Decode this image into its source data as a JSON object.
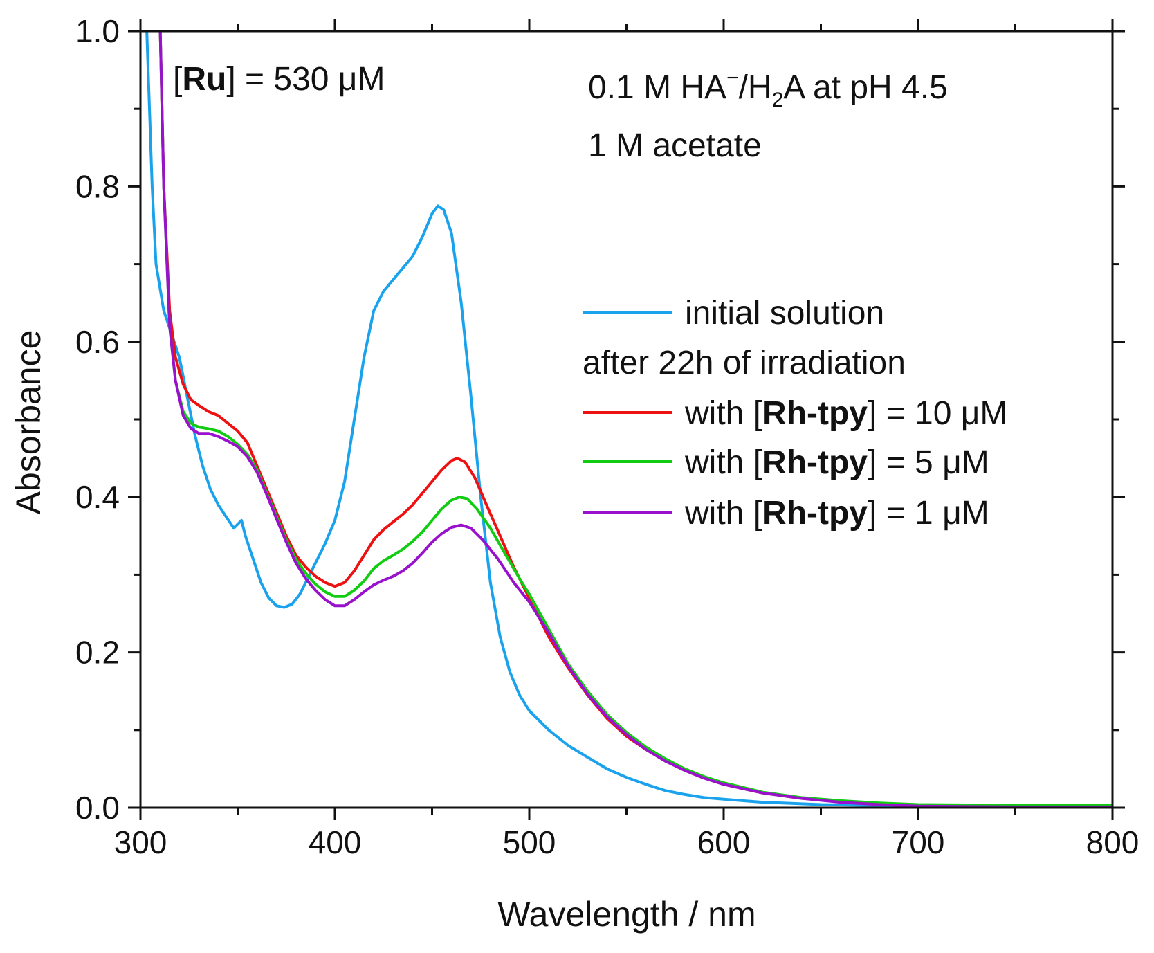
{
  "chart_data": {
    "type": "line",
    "xlabel": "Wavelength / nm",
    "ylabel": "Absorbance",
    "xlim": [
      300,
      800
    ],
    "ylim": [
      0.0,
      1.0
    ],
    "x_ticks": [
      "300",
      "400",
      "500",
      "600",
      "700",
      "800"
    ],
    "y_ticks": [
      "0.0",
      "0.2",
      "0.4",
      "0.6",
      "0.8",
      "1.0"
    ],
    "annotations": {
      "ru": {
        "open": "[",
        "bold": "Ru",
        "close": "] = 530 μM"
      },
      "line1": {
        "a": "0.1 M HA",
        "sup": "−",
        "b": "/H",
        "sub": "2",
        "c": "A at pH 4.5"
      },
      "line2": "1 M acetate"
    },
    "legend_header": "after 22h of irradiation",
    "series": [
      {
        "name": "initial solution",
        "legend": {
          "pre": "initial solution",
          "bold": "",
          "post": ""
        },
        "color": "#1aa3ec",
        "points": [
          [
            303,
            1.02
          ],
          [
            306,
            0.8
          ],
          [
            308,
            0.7
          ],
          [
            312,
            0.64
          ],
          [
            316,
            0.61
          ],
          [
            320,
            0.58
          ],
          [
            324,
            0.53
          ],
          [
            328,
            0.48
          ],
          [
            332,
            0.44
          ],
          [
            336,
            0.41
          ],
          [
            340,
            0.39
          ],
          [
            344,
            0.375
          ],
          [
            348,
            0.36
          ],
          [
            352,
            0.37
          ],
          [
            354,
            0.35
          ],
          [
            358,
            0.32
          ],
          [
            362,
            0.29
          ],
          [
            366,
            0.27
          ],
          [
            370,
            0.26
          ],
          [
            374,
            0.258
          ],
          [
            378,
            0.262
          ],
          [
            382,
            0.275
          ],
          [
            386,
            0.295
          ],
          [
            390,
            0.315
          ],
          [
            395,
            0.34
          ],
          [
            400,
            0.37
          ],
          [
            405,
            0.42
          ],
          [
            410,
            0.5
          ],
          [
            415,
            0.58
          ],
          [
            420,
            0.64
          ],
          [
            425,
            0.665
          ],
          [
            430,
            0.68
          ],
          [
            435,
            0.695
          ],
          [
            440,
            0.71
          ],
          [
            445,
            0.735
          ],
          [
            450,
            0.765
          ],
          [
            453,
            0.775
          ],
          [
            456,
            0.77
          ],
          [
            460,
            0.74
          ],
          [
            465,
            0.65
          ],
          [
            470,
            0.53
          ],
          [
            475,
            0.4
          ],
          [
            480,
            0.29
          ],
          [
            485,
            0.22
          ],
          [
            490,
            0.175
          ],
          [
            495,
            0.145
          ],
          [
            500,
            0.125
          ],
          [
            510,
            0.1
          ],
          [
            520,
            0.08
          ],
          [
            530,
            0.065
          ],
          [
            540,
            0.05
          ],
          [
            550,
            0.039
          ],
          [
            560,
            0.03
          ],
          [
            570,
            0.022
          ],
          [
            580,
            0.017
          ],
          [
            590,
            0.013
          ],
          [
            600,
            0.011
          ],
          [
            620,
            0.007
          ],
          [
            650,
            0.004
          ],
          [
            700,
            0.002
          ],
          [
            750,
            0.001
          ],
          [
            800,
            0.001
          ]
        ]
      },
      {
        "name": "with [Rh-tpy] = 10 μM",
        "legend": {
          "pre": "with [",
          "bold": "Rh-tpy",
          "post": "] = 10 μM"
        },
        "color": "#ee1111",
        "points": [
          [
            310,
            1.02
          ],
          [
            312,
            0.8
          ],
          [
            315,
            0.64
          ],
          [
            318,
            0.58
          ],
          [
            322,
            0.545
          ],
          [
            326,
            0.525
          ],
          [
            330,
            0.518
          ],
          [
            335,
            0.51
          ],
          [
            340,
            0.505
          ],
          [
            345,
            0.495
          ],
          [
            350,
            0.485
          ],
          [
            355,
            0.47
          ],
          [
            360,
            0.44
          ],
          [
            365,
            0.41
          ],
          [
            370,
            0.38
          ],
          [
            375,
            0.35
          ],
          [
            380,
            0.325
          ],
          [
            385,
            0.31
          ],
          [
            390,
            0.298
          ],
          [
            395,
            0.29
          ],
          [
            400,
            0.285
          ],
          [
            405,
            0.29
          ],
          [
            410,
            0.305
          ],
          [
            415,
            0.325
          ],
          [
            420,
            0.345
          ],
          [
            425,
            0.358
          ],
          [
            430,
            0.368
          ],
          [
            435,
            0.378
          ],
          [
            440,
            0.39
          ],
          [
            445,
            0.405
          ],
          [
            450,
            0.42
          ],
          [
            455,
            0.435
          ],
          [
            460,
            0.447
          ],
          [
            463,
            0.45
          ],
          [
            467,
            0.445
          ],
          [
            472,
            0.425
          ],
          [
            478,
            0.39
          ],
          [
            485,
            0.35
          ],
          [
            492,
            0.31
          ],
          [
            500,
            0.27
          ],
          [
            510,
            0.22
          ],
          [
            520,
            0.18
          ],
          [
            530,
            0.145
          ],
          [
            540,
            0.115
          ],
          [
            550,
            0.092
          ],
          [
            560,
            0.075
          ],
          [
            570,
            0.06
          ],
          [
            580,
            0.048
          ],
          [
            590,
            0.038
          ],
          [
            600,
            0.03
          ],
          [
            620,
            0.019
          ],
          [
            640,
            0.012
          ],
          [
            660,
            0.008
          ],
          [
            680,
            0.005
          ],
          [
            700,
            0.003
          ],
          [
            750,
            0.002
          ],
          [
            800,
            0.002
          ]
        ]
      },
      {
        "name": "with [Rh-tpy] = 5 μM",
        "legend": {
          "pre": "with [",
          "bold": "Rh-tpy",
          "post": "] = 5 μM"
        },
        "color": "#11cc11",
        "points": [
          [
            310,
            1.02
          ],
          [
            312,
            0.8
          ],
          [
            315,
            0.62
          ],
          [
            318,
            0.55
          ],
          [
            322,
            0.51
          ],
          [
            326,
            0.495
          ],
          [
            330,
            0.49
          ],
          [
            335,
            0.488
          ],
          [
            340,
            0.485
          ],
          [
            345,
            0.478
          ],
          [
            350,
            0.468
          ],
          [
            355,
            0.455
          ],
          [
            360,
            0.435
          ],
          [
            365,
            0.405
          ],
          [
            370,
            0.375
          ],
          [
            375,
            0.345
          ],
          [
            380,
            0.32
          ],
          [
            385,
            0.302
          ],
          [
            390,
            0.288
          ],
          [
            395,
            0.278
          ],
          [
            400,
            0.272
          ],
          [
            405,
            0.272
          ],
          [
            410,
            0.28
          ],
          [
            415,
            0.292
          ],
          [
            420,
            0.308
          ],
          [
            425,
            0.318
          ],
          [
            430,
            0.325
          ],
          [
            435,
            0.333
          ],
          [
            440,
            0.343
          ],
          [
            445,
            0.355
          ],
          [
            450,
            0.37
          ],
          [
            455,
            0.385
          ],
          [
            460,
            0.396
          ],
          [
            464,
            0.4
          ],
          [
            468,
            0.398
          ],
          [
            473,
            0.385
          ],
          [
            480,
            0.36
          ],
          [
            488,
            0.325
          ],
          [
            495,
            0.295
          ],
          [
            500,
            0.275
          ],
          [
            510,
            0.23
          ],
          [
            520,
            0.185
          ],
          [
            530,
            0.15
          ],
          [
            540,
            0.12
          ],
          [
            550,
            0.097
          ],
          [
            560,
            0.078
          ],
          [
            570,
            0.063
          ],
          [
            580,
            0.05
          ],
          [
            590,
            0.04
          ],
          [
            600,
            0.032
          ],
          [
            620,
            0.02
          ],
          [
            640,
            0.013
          ],
          [
            660,
            0.009
          ],
          [
            680,
            0.006
          ],
          [
            700,
            0.004
          ],
          [
            750,
            0.003
          ],
          [
            800,
            0.003
          ]
        ]
      },
      {
        "name": "with [Rh-tpy] = 1 μM",
        "legend": {
          "pre": "with [",
          "bold": "Rh-tpy",
          "post": "] = 1 μM"
        },
        "color": "#9911cc",
        "points": [
          [
            310,
            1.02
          ],
          [
            312,
            0.8
          ],
          [
            315,
            0.62
          ],
          [
            318,
            0.55
          ],
          [
            322,
            0.505
          ],
          [
            326,
            0.488
          ],
          [
            330,
            0.482
          ],
          [
            335,
            0.482
          ],
          [
            340,
            0.478
          ],
          [
            345,
            0.472
          ],
          [
            350,
            0.465
          ],
          [
            355,
            0.452
          ],
          [
            360,
            0.432
          ],
          [
            365,
            0.403
          ],
          [
            370,
            0.372
          ],
          [
            375,
            0.342
          ],
          [
            380,
            0.315
          ],
          [
            385,
            0.295
          ],
          [
            390,
            0.28
          ],
          [
            395,
            0.268
          ],
          [
            400,
            0.26
          ],
          [
            405,
            0.26
          ],
          [
            410,
            0.268
          ],
          [
            415,
            0.278
          ],
          [
            420,
            0.287
          ],
          [
            425,
            0.293
          ],
          [
            430,
            0.298
          ],
          [
            435,
            0.305
          ],
          [
            440,
            0.315
          ],
          [
            445,
            0.328
          ],
          [
            450,
            0.342
          ],
          [
            455,
            0.353
          ],
          [
            460,
            0.361
          ],
          [
            465,
            0.364
          ],
          [
            470,
            0.36
          ],
          [
            476,
            0.345
          ],
          [
            484,
            0.32
          ],
          [
            492,
            0.29
          ],
          [
            500,
            0.265
          ],
          [
            510,
            0.225
          ],
          [
            520,
            0.182
          ],
          [
            530,
            0.146
          ],
          [
            540,
            0.117
          ],
          [
            550,
            0.094
          ],
          [
            560,
            0.075
          ],
          [
            570,
            0.06
          ],
          [
            580,
            0.048
          ],
          [
            590,
            0.038
          ],
          [
            600,
            0.03
          ],
          [
            620,
            0.019
          ],
          [
            640,
            0.012
          ],
          [
            660,
            0.007
          ],
          [
            680,
            0.004
          ],
          [
            700,
            0.002
          ],
          [
            750,
            0.001
          ],
          [
            800,
            0.001
          ]
        ]
      }
    ]
  }
}
